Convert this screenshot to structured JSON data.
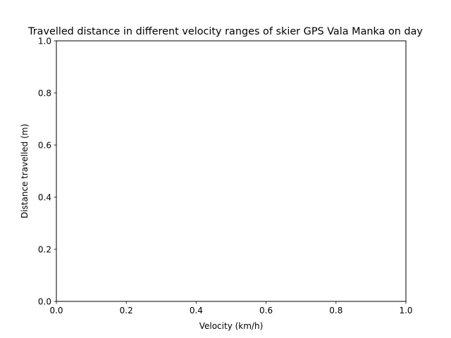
{
  "chart_data": {
    "type": "bar",
    "title": "Travelled distance in different velocity ranges of skier GPS Vala Manka on day",
    "xlabel": "Velocity (km/h)",
    "ylabel": "Distance travelled (m)",
    "xlim": [
      0.0,
      1.0
    ],
    "ylim": [
      0.0,
      1.0
    ],
    "xticks": [
      "0.0",
      "0.2",
      "0.4",
      "0.6",
      "0.8",
      "1.0"
    ],
    "yticks": [
      "0.0",
      "0.2",
      "0.4",
      "0.6",
      "0.8",
      "1.0"
    ],
    "categories": [],
    "values": [],
    "grid": false,
    "legend": "none"
  }
}
